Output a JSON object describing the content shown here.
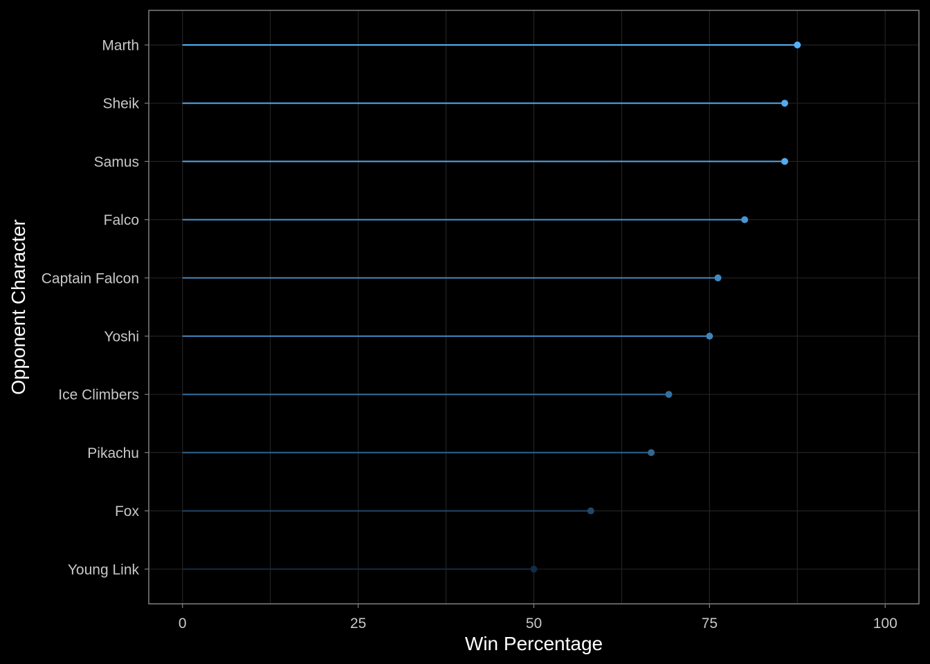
{
  "chart_data": {
    "type": "lollipop",
    "title": "",
    "xlabel": "Win Percentage",
    "ylabel": "Opponent Character",
    "xlim": [
      -4.8,
      104.8
    ],
    "x_ticks": [
      0,
      25,
      50,
      75,
      100
    ],
    "x_tick_labels": [
      "0",
      "25",
      "50",
      "75",
      "100"
    ],
    "categories": [
      "Marth",
      "Sheik",
      "Samus",
      "Falco",
      "Captain Falcon",
      "Yoshi",
      "Ice Climbers",
      "Pikachu",
      "Fox",
      "Young Link"
    ],
    "values": [
      87.5,
      85.7,
      85.7,
      80.0,
      76.2,
      75.0,
      69.2,
      66.7,
      58.1,
      50.0
    ],
    "color_low": "#132b43",
    "color_high": "#56b1f7",
    "grid": true,
    "legend": "none",
    "background": "#000000",
    "panel_border": "#808080",
    "grid_color": "#232323"
  }
}
